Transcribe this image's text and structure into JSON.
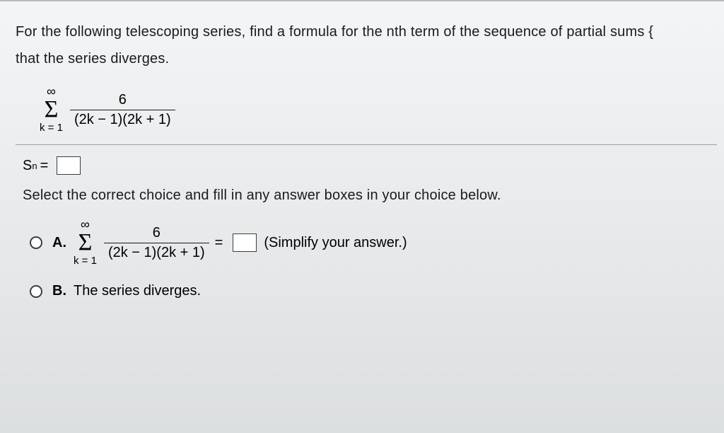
{
  "question": {
    "line1": "For the following telescoping series, find a formula for the nth term of the sequence of partial sums {",
    "line2": "that the series diverges."
  },
  "series": {
    "sigma_top": "∞",
    "sigma_bottom": "k = 1",
    "numerator": "6",
    "denominator": "(2k − 1)(2k + 1)"
  },
  "sn": {
    "symbol": "S",
    "subscript": "n",
    "equals": "="
  },
  "instruction": "Select the correct choice and fill in any answer boxes in your choice below.",
  "choices": {
    "a": {
      "label": "A.",
      "sigma_top": "∞",
      "sigma_bottom": "k = 1",
      "numerator": "6",
      "denominator": "(2k − 1)(2k + 1)",
      "equals": "=",
      "hint": "(Simplify your answer.)"
    },
    "b": {
      "label": "B.",
      "text": "The series diverges."
    }
  },
  "colors": {
    "text": "#1a1a1a",
    "divider": "#9aa0a4",
    "box_border": "#3a3f42",
    "bg_top": "#f4f5f6",
    "bg_bottom": "#dcdfe0"
  }
}
